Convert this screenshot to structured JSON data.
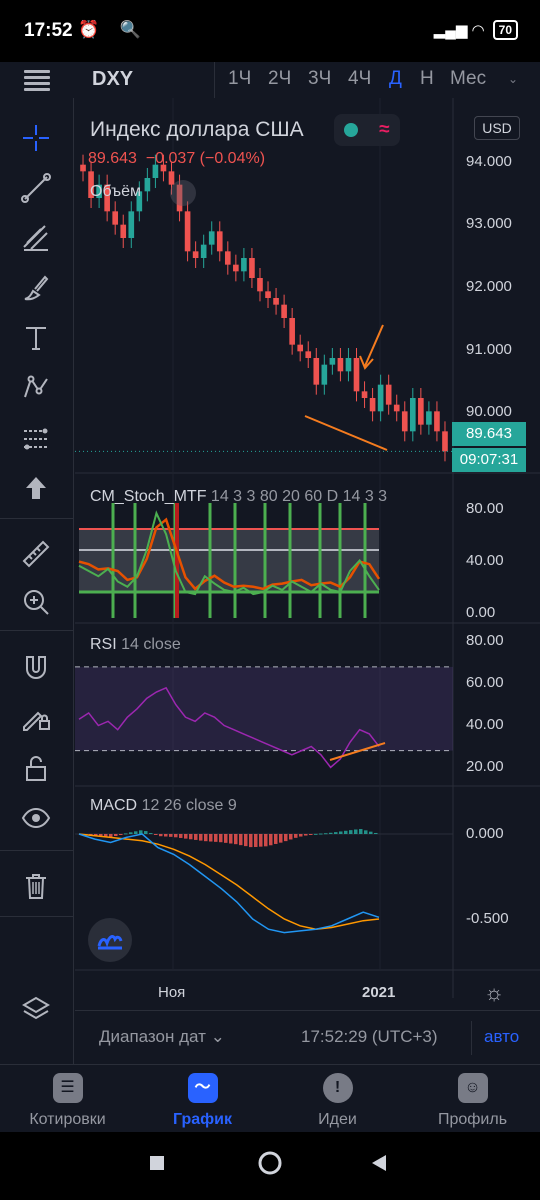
{
  "status_bar": {
    "time": "17:52",
    "left_icons": "⏰ 🔍",
    "right_icons": "▂▄▆ ◠",
    "battery": "70"
  },
  "toolbar": {
    "symbol": "DXY",
    "timeframes": [
      "1Ч",
      "2Ч",
      "3Ч",
      "4Ч",
      "Д",
      "Н",
      "Мес"
    ],
    "active_timeframe": "Д"
  },
  "left_tools": [
    "crosshair-icon",
    "trend-line-icon",
    "fib-icon",
    "brush-icon",
    "text-icon",
    "pattern-icon",
    "forecast-icon",
    "arrow-up-icon",
    "ruler-icon",
    "zoom-icon",
    "magnet-icon",
    "lock-draw-icon",
    "lock-icon",
    "eye-icon",
    "trash-icon",
    "layers-icon"
  ],
  "legend": {
    "title": "Индекс доллара США",
    "price": "89.643",
    "change": "−0.037 (−0.04%)",
    "volume": "Объём",
    "currency": "USD",
    "status_wave": "≈"
  },
  "price_axis": [
    "94.000",
    "93.000",
    "92.000",
    "91.000",
    "90.000"
  ],
  "price_tag": "89.643",
  "countdown_tag": "09:07:31",
  "stoch": {
    "name": "CM_Stoch_MTF",
    "params": "14 3 3 80 20 60 D 14 3 3",
    "axis": [
      "80.00",
      "40.00",
      "0.00"
    ]
  },
  "rsi": {
    "name": "RSI",
    "params": "14 close",
    "axis": [
      "80.00",
      "60.00",
      "40.00",
      "20.00"
    ]
  },
  "macd": {
    "name": "MACD",
    "params": "12 26 close 9",
    "axis": [
      "0.000",
      "-0.500"
    ]
  },
  "time_axis": {
    "labels": [
      "Ноя",
      "2021"
    ]
  },
  "range_bar": {
    "range_label": "Диапазон дат ⌄",
    "time": "17:52:29 (UTC+3)",
    "auto": "авто"
  },
  "bottom_nav": {
    "items": [
      "Котировки",
      "График",
      "Идеи",
      "Профиль"
    ],
    "active": "График"
  },
  "colors": {
    "up": "#26a69a",
    "down": "#ef5350",
    "accent": "#2962ff",
    "annotation": "#f57c1f",
    "rsi_line": "#9c27b0"
  },
  "chart_data": {
    "type": "candlestick",
    "symbol": "DXY",
    "ohlc_close_approx": [
      93.8,
      93.4,
      93.6,
      93.2,
      93.0,
      92.8,
      93.2,
      93.5,
      93.7,
      93.9,
      93.8,
      93.6,
      93.2,
      92.6,
      92.5,
      92.7,
      92.9,
      92.6,
      92.4,
      92.3,
      92.5,
      92.2,
      92.0,
      91.9,
      91.8,
      91.6,
      91.2,
      91.1,
      91.0,
      90.6,
      90.9,
      91.0,
      90.8,
      91.0,
      90.5,
      90.4,
      90.2,
      90.6,
      90.3,
      90.2,
      89.9,
      90.4,
      90.0,
      90.2,
      89.9,
      89.6
    ],
    "stoch_k_approx": [
      45,
      40,
      35,
      42,
      30,
      25,
      35,
      60,
      95,
      75,
      40,
      20,
      18,
      35,
      28,
      22,
      20,
      24,
      18,
      20,
      26,
      22,
      30,
      25,
      20,
      28,
      22,
      20,
      40,
      50,
      35,
      22
    ],
    "rsi_approx": [
      45,
      48,
      42,
      44,
      40,
      46,
      50,
      55,
      58,
      60,
      52,
      46,
      44,
      48,
      46,
      42,
      40,
      38,
      36,
      34,
      32,
      30,
      28,
      30,
      32,
      28,
      22,
      26,
      34,
      40,
      38,
      32
    ],
    "macd_line_approx": [
      0.0,
      -0.03,
      -0.05,
      -0.02,
      0.0,
      -0.08,
      -0.12,
      -0.18,
      -0.25,
      -0.32,
      -0.4,
      -0.5,
      -0.56,
      -0.58,
      -0.57,
      -0.56,
      -0.54,
      -0.5,
      -0.46,
      -0.49
    ],
    "signal_line_approx": [
      0.0,
      -0.01,
      -0.02,
      -0.03,
      -0.04,
      -0.06,
      -0.09,
      -0.13,
      -0.18,
      -0.24,
      -0.3,
      -0.37,
      -0.44,
      -0.5,
      -0.54,
      -0.56,
      -0.55,
      -0.53,
      -0.51,
      -0.5
    ],
    "xlabels": [
      "Ноя",
      "2021"
    ],
    "price_range": [
      89.5,
      94.3
    ]
  }
}
